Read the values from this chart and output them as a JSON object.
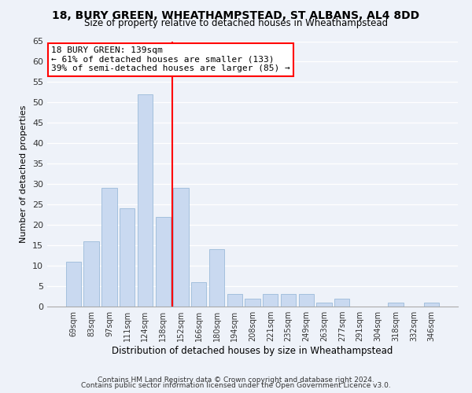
{
  "title": "18, BURY GREEN, WHEATHAMPSTEAD, ST ALBANS, AL4 8DD",
  "subtitle": "Size of property relative to detached houses in Wheathampstead",
  "xlabel": "Distribution of detached houses by size in Wheathampstead",
  "ylabel": "Number of detached properties",
  "bar_labels": [
    "69sqm",
    "83sqm",
    "97sqm",
    "111sqm",
    "124sqm",
    "138sqm",
    "152sqm",
    "166sqm",
    "180sqm",
    "194sqm",
    "208sqm",
    "221sqm",
    "235sqm",
    "249sqm",
    "263sqm",
    "277sqm",
    "291sqm",
    "304sqm",
    "318sqm",
    "332sqm",
    "346sqm"
  ],
  "bar_values": [
    11,
    16,
    29,
    24,
    52,
    22,
    29,
    6,
    14,
    3,
    2,
    3,
    3,
    3,
    1,
    2,
    0,
    0,
    1,
    0,
    1
  ],
  "bar_color": "#c9d9f0",
  "bar_edge_color": "#9bbad9",
  "vline_x": 5.5,
  "vline_color": "red",
  "annotation_title": "18 BURY GREEN: 139sqm",
  "annotation_line1": "← 61% of detached houses are smaller (133)",
  "annotation_line2": "39% of semi-detached houses are larger (85) →",
  "annotation_box_color": "white",
  "annotation_box_edge": "red",
  "ylim": [
    0,
    65
  ],
  "yticks": [
    0,
    5,
    10,
    15,
    20,
    25,
    30,
    35,
    40,
    45,
    50,
    55,
    60,
    65
  ],
  "footnote1": "Contains HM Land Registry data © Crown copyright and database right 2024.",
  "footnote2": "Contains public sector information licensed under the Open Government Licence v3.0.",
  "bg_color": "#eef2f9",
  "plot_bg_color": "#eef2f9",
  "grid_color": "white"
}
